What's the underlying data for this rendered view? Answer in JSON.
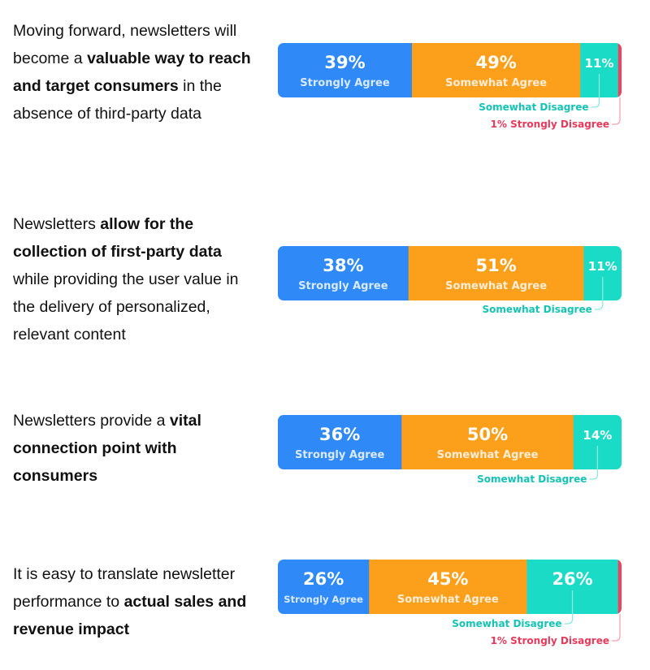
{
  "colors": {
    "strongly_agree": "#2f8af7",
    "somewhat_agree": "#fca01c",
    "somewhat_disagree": "#1adcc6",
    "strongly_disagree": "#f0415f",
    "callout_somewhat_disagree": "#14c3b3",
    "callout_strongly_disagree": "#e8395a"
  },
  "chart_data": {
    "type": "bar",
    "orientation": "horizontal-stacked-100",
    "items": [
      {
        "statement": [
          {
            "text": "Moving forward, newsletters will become a ",
            "bold": false
          },
          {
            "text": "valuable way to reach and target consumers",
            "bold": true
          },
          {
            "text": " in the absence of third-party data",
            "bold": false
          }
        ],
        "segments": [
          {
            "key": "strongly_agree",
            "value": 39,
            "pct": "39%",
            "label": "Strongly Agree"
          },
          {
            "key": "somewhat_agree",
            "value": 49,
            "pct": "49%",
            "label": "Somewhat Agree"
          },
          {
            "key": "somewhat_disagree",
            "value": 11,
            "pct": "11%",
            "label": ""
          },
          {
            "key": "strongly_disagree",
            "value": 1,
            "pct": "",
            "label": ""
          }
        ],
        "callouts": [
          {
            "key": "somewhat_disagree",
            "text": "Somewhat Disagree"
          },
          {
            "key": "strongly_disagree",
            "text": "1% Strongly Disagree"
          }
        ]
      },
      {
        "statement": [
          {
            "text": "Newsletters ",
            "bold": false
          },
          {
            "text": "allow for the collection of first-party data",
            "bold": true
          },
          {
            "text": " while providing the user value in the delivery of personalized, relevant content",
            "bold": false
          }
        ],
        "segments": [
          {
            "key": "strongly_agree",
            "value": 38,
            "pct": "38%",
            "label": "Strongly Agree"
          },
          {
            "key": "somewhat_agree",
            "value": 51,
            "pct": "51%",
            "label": "Somewhat Agree"
          },
          {
            "key": "somewhat_disagree",
            "value": 11,
            "pct": "11%",
            "label": ""
          }
        ],
        "callouts": [
          {
            "key": "somewhat_disagree",
            "text": "Somewhat Disagree"
          }
        ]
      },
      {
        "statement": [
          {
            "text": "Newsletters provide a ",
            "bold": false
          },
          {
            "text": "vital connection point with consumers",
            "bold": true
          }
        ],
        "segments": [
          {
            "key": "strongly_agree",
            "value": 36,
            "pct": "36%",
            "label": "Strongly Agree"
          },
          {
            "key": "somewhat_agree",
            "value": 50,
            "pct": "50%",
            "label": "Somewhat Agree"
          },
          {
            "key": "somewhat_disagree",
            "value": 14,
            "pct": "14%",
            "label": ""
          }
        ],
        "callouts": [
          {
            "key": "somewhat_disagree",
            "text": "Somewhat Disagree"
          }
        ]
      },
      {
        "statement": [
          {
            "text": "It is easy to translate newsletter performance to ",
            "bold": false
          },
          {
            "text": "actual sales and revenue impact",
            "bold": true
          }
        ],
        "segments": [
          {
            "key": "strongly_agree",
            "value": 26,
            "pct": "26%",
            "label": "Strongly Agree"
          },
          {
            "key": "somewhat_agree",
            "value": 45,
            "pct": "45%",
            "label": "Somewhat Agree"
          },
          {
            "key": "somewhat_disagree",
            "value": 26,
            "pct": "26%",
            "label": ""
          },
          {
            "key": "strongly_disagree",
            "value": 1,
            "pct": "",
            "label": ""
          }
        ],
        "callouts": [
          {
            "key": "somewhat_disagree",
            "text": "Somewhat Disagree"
          },
          {
            "key": "strongly_disagree",
            "text": "1% Strongly Disagree"
          }
        ]
      }
    ]
  }
}
